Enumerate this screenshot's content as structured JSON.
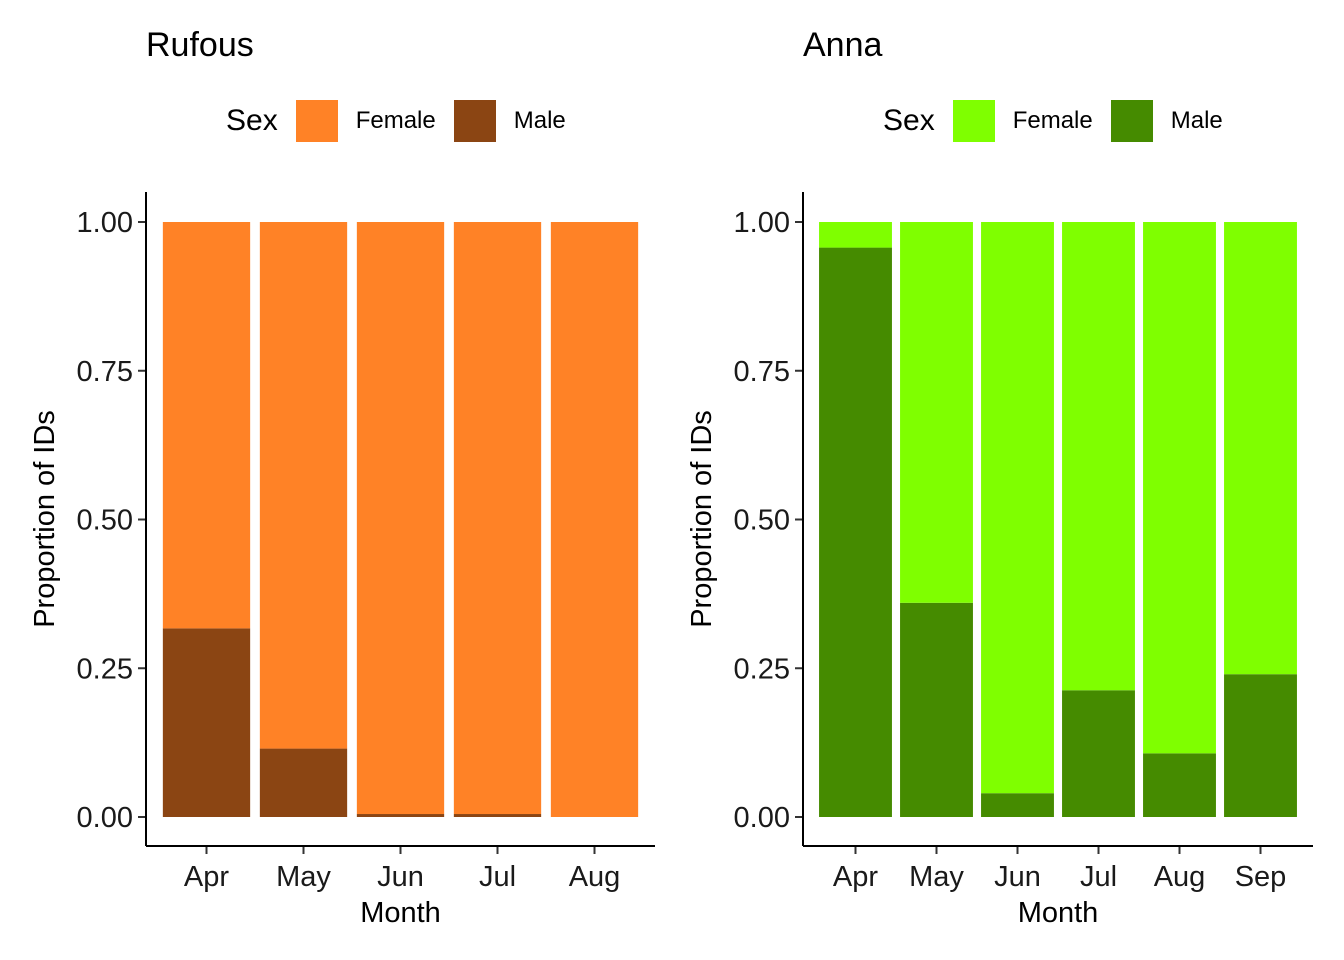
{
  "chart_data": [
    {
      "type": "bar",
      "stacked": true,
      "title": "Rufous",
      "xlabel": "Month",
      "ylabel": "Proportion of IDs",
      "ylim": [
        0,
        1
      ],
      "yticks": [
        "0.00",
        "0.25",
        "0.50",
        "0.75",
        "1.00"
      ],
      "legend_title": "Sex",
      "categories": [
        "Apr",
        "May",
        "Jun",
        "Jul",
        "Aug"
      ],
      "series": [
        {
          "name": "Female",
          "color": "#FF8226",
          "values": [
            0.683,
            0.885,
            0.995,
            0.995,
            1.0
          ]
        },
        {
          "name": "Male",
          "color": "#8B4513",
          "values": [
            0.317,
            0.115,
            0.005,
            0.005,
            0.0
          ]
        }
      ]
    },
    {
      "type": "bar",
      "stacked": true,
      "title": "Anna",
      "xlabel": "Month",
      "ylabel": "Proportion of IDs",
      "ylim": [
        0,
        1
      ],
      "yticks": [
        "0.00",
        "0.25",
        "0.50",
        "0.75",
        "1.00"
      ],
      "legend_title": "Sex",
      "categories": [
        "Apr",
        "May",
        "Jun",
        "Jul",
        "Aug",
        "Sep"
      ],
      "series": [
        {
          "name": "Female",
          "color": "#7FFF00",
          "values": [
            0.043,
            0.64,
            0.96,
            0.787,
            0.893,
            0.76
          ]
        },
        {
          "name": "Male",
          "color": "#458B00",
          "values": [
            0.957,
            0.36,
            0.04,
            0.213,
            0.107,
            0.24
          ]
        }
      ]
    }
  ]
}
